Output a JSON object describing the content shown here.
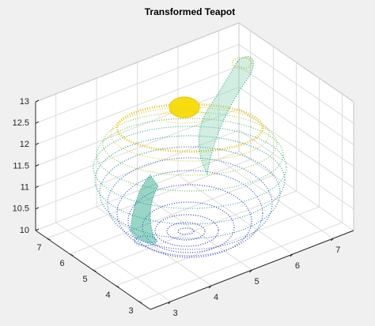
{
  "chart_data": {
    "type": "scatter3d",
    "title": "Transformed Teapot",
    "xlim": [
      2.5,
      7.5
    ],
    "ylim": [
      2.5,
      7.5
    ],
    "zlim": [
      10,
      13
    ],
    "xticks": [
      3,
      4,
      5,
      6,
      7
    ],
    "yticks": [
      3,
      4,
      5,
      6,
      7
    ],
    "zticks": [
      10,
      10.5,
      11,
      11.5,
      12,
      12.5,
      13
    ],
    "grid": true
  }
}
